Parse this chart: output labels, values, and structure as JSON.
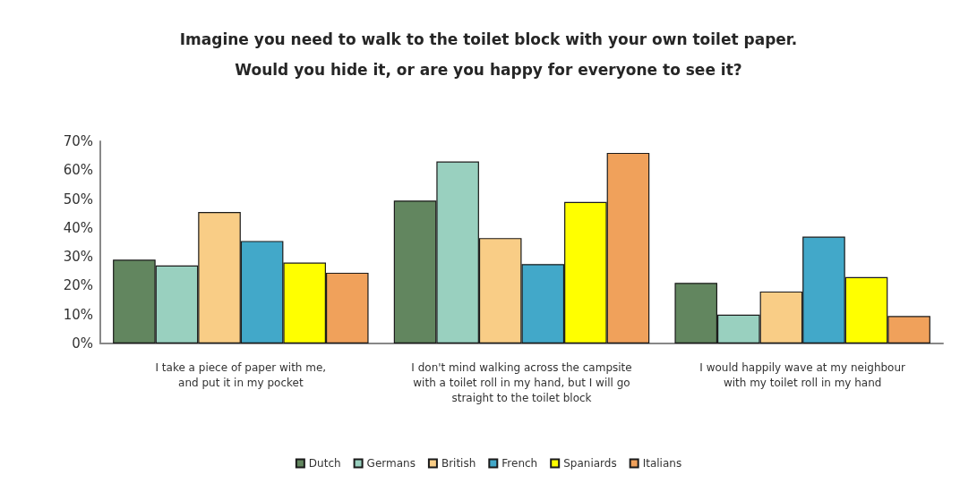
{
  "chart_data": {
    "type": "bar",
    "title": "Imagine you need to walk to the toilet block with your own toilet paper.\nWould you hide it, or are you happy for everyone to see it?",
    "categories": [
      "I take a piece of paper with me,\nand put it in my pocket",
      "I don't mind walking across the campsite\nwith a toilet roll in my hand, but I will go\nstraight to the toilet block",
      "I would happily wave at my neighbour\nwith my toilet roll in my hand"
    ],
    "series": [
      {
        "name": "Dutch",
        "color": "#62865f",
        "values": [
          29,
          49.5,
          21
        ]
      },
      {
        "name": "Germans",
        "color": "#99d0bf",
        "values": [
          27,
          63,
          10
        ]
      },
      {
        "name": "British",
        "color": "#f9cd86",
        "values": [
          45.5,
          36.5,
          18
        ]
      },
      {
        "name": "French",
        "color": "#42a8c9",
        "values": [
          35.5,
          27.5,
          37
        ]
      },
      {
        "name": "Spaniards",
        "color": "#ffff00",
        "values": [
          28,
          49,
          23
        ]
      },
      {
        "name": "Italians",
        "color": "#f0a15b",
        "values": [
          24.5,
          66,
          9.5
        ]
      }
    ],
    "ylim": [
      0,
      70
    ],
    "yticks": [
      {
        "value": 0,
        "label": "0%"
      },
      {
        "value": 10,
        "label": "10%"
      },
      {
        "value": 20,
        "label": "20%"
      },
      {
        "value": 30,
        "label": "30%"
      },
      {
        "value": 40,
        "label": "40%"
      },
      {
        "value": 50,
        "label": "50%"
      },
      {
        "value": 60,
        "label": "60%"
      },
      {
        "value": 70,
        "label": "70%"
      }
    ],
    "grid": false,
    "legend": "bottom"
  }
}
